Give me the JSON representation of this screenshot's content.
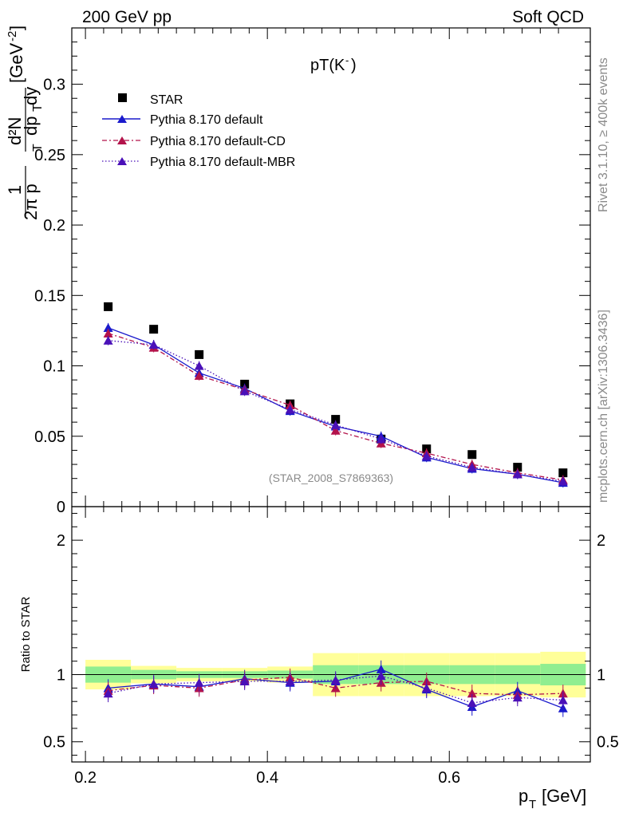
{
  "header": {
    "left": "200 GeV pp",
    "right": "Soft QCD"
  },
  "side_labels": {
    "rivet": "Rivet 3.1.10, ≥ 400k events",
    "mcplots": "mcplots.cern.ch [arXiv:1306.3436]"
  },
  "chart_data": [
    {
      "type": "scatter",
      "title": "pT(K⁻)",
      "title_main": "pT(K",
      "title_sup": "-",
      "title_close": ")",
      "ylabel_parts": {
        "one": "1",
        "two_pi": "2π p",
        "sub_T": "T",
        "num": "d²N",
        "den_dp": "dp",
        "den_dy": "dy",
        "unit": "[GeV",
        "unit_exp": "-2",
        "unit_close": "]"
      },
      "xlabel_main": "p",
      "xlabel_sub": "T",
      "xlabel_unit": "[GeV]",
      "xlim": [
        0.185,
        0.755
      ],
      "ylim": [
        0,
        0.34
      ],
      "x_ticks": [
        "0.2",
        "0.4",
        "0.6"
      ],
      "y_ticks": [
        "0",
        "0.05",
        "0.1",
        "0.15",
        "0.2",
        "0.25",
        "0.3"
      ],
      "annotation": "(STAR_2008_S7869363)",
      "legend": [
        "STAR",
        "Pythia 8.170 default",
        "Pythia 8.170 default-CD",
        "Pythia 8.170 default-MBR"
      ],
      "x": [
        0.225,
        0.275,
        0.325,
        0.375,
        0.425,
        0.475,
        0.525,
        0.575,
        0.625,
        0.675,
        0.725
      ],
      "series": [
        {
          "name": "STAR",
          "color": "#000000",
          "values": [
            0.142,
            0.126,
            0.108,
            0.087,
            0.073,
            0.062,
            0.048,
            0.041,
            0.037,
            0.028,
            0.024
          ]
        },
        {
          "name": "Pythia 8.170 default",
          "color": "#1a1acc",
          "values": [
            0.127,
            0.115,
            0.095,
            0.084,
            0.068,
            0.057,
            0.05,
            0.035,
            0.027,
            0.023,
            0.017
          ]
        },
        {
          "name": "Pythia 8.170 default-CD",
          "color": "#b3134b",
          "values": [
            0.123,
            0.113,
            0.093,
            0.083,
            0.072,
            0.054,
            0.045,
            0.038,
            0.03,
            0.024,
            0.019
          ]
        },
        {
          "name": "Pythia 8.170 default-MBR",
          "color": "#4a10b8",
          "values": [
            0.118,
            0.115,
            0.1,
            0.082,
            0.069,
            0.058,
            0.048,
            0.036,
            0.028,
            0.023,
            0.018
          ]
        }
      ]
    },
    {
      "type": "scatter",
      "ylabel": "Ratio to STAR",
      "ylim": [
        0.35,
        2.25
      ],
      "y_ticks": [
        "0.5",
        "1",
        "2"
      ],
      "x": [
        0.225,
        0.275,
        0.325,
        0.375,
        0.425,
        0.475,
        0.525,
        0.575,
        0.625,
        0.675,
        0.725
      ],
      "bands": {
        "x_edges": [
          0.2,
          0.25,
          0.3,
          0.35,
          0.4,
          0.45,
          0.5,
          0.55,
          0.6,
          0.65,
          0.7,
          0.75
        ],
        "green_half": [
          0.06,
          0.035,
          0.025,
          0.025,
          0.03,
          0.07,
          0.07,
          0.07,
          0.07,
          0.07,
          0.08
        ],
        "yellow_half": [
          0.11,
          0.065,
          0.05,
          0.05,
          0.06,
          0.16,
          0.16,
          0.16,
          0.16,
          0.16,
          0.17
        ],
        "green_color": "#90ee90",
        "yellow_color": "#ffff99"
      },
      "series": [
        {
          "name": "Pythia 8.170 default",
          "color": "#1a1acc",
          "values": [
            0.9,
            0.93,
            0.91,
            0.97,
            0.94,
            0.95,
            1.04,
            0.89,
            0.76,
            0.88,
            0.75
          ]
        },
        {
          "name": "Pythia 8.170 default-CD",
          "color": "#b3134b",
          "values": [
            0.88,
            0.92,
            0.9,
            0.96,
            0.98,
            0.9,
            0.94,
            0.95,
            0.86,
            0.85,
            0.86
          ]
        },
        {
          "name": "Pythia 8.170 default-MBR",
          "color": "#4a10b8",
          "values": [
            0.86,
            0.93,
            0.94,
            0.95,
            0.95,
            0.96,
            0.99,
            0.9,
            0.79,
            0.83,
            0.81
          ]
        }
      ]
    }
  ]
}
